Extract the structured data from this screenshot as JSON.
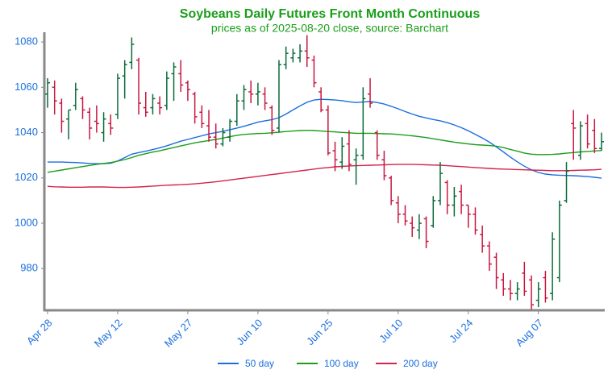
{
  "chart_data": {
    "type": "ohlc",
    "title": "Soybeans Daily Futures Front Month Continuous",
    "subtitle": "prices as of 2025-08-20 close, source: Barchart",
    "title_color": "#1a9e1a",
    "axis_label_color": "#1a6fdf",
    "categories": [
      "Apr 28",
      null,
      null,
      null,
      null,
      null,
      null,
      null,
      null,
      null,
      "May 12",
      null,
      null,
      null,
      null,
      null,
      null,
      null,
      null,
      null,
      "May 27",
      null,
      null,
      null,
      null,
      null,
      null,
      null,
      null,
      null,
      "Jun 10",
      null,
      null,
      null,
      null,
      null,
      null,
      null,
      null,
      null,
      "Jun 25",
      null,
      null,
      null,
      null,
      null,
      null,
      null,
      null,
      null,
      "Jul 10",
      null,
      null,
      null,
      null,
      null,
      null,
      null,
      null,
      null,
      "Jul 24",
      null,
      null,
      null,
      null,
      null,
      null,
      null,
      null,
      null,
      "Aug 07",
      null,
      null,
      null,
      null,
      null,
      null,
      null,
      null,
      null
    ],
    "open": [
      1057,
      1060,
      1053,
      1046,
      1052,
      1055,
      1049,
      1045,
      1040,
      1044,
      1048,
      1065,
      1071,
      1072,
      1051,
      1051,
      1053,
      1052,
      1066,
      1066,
      1062,
      1057,
      1049,
      1043,
      1038,
      1035,
      1038,
      1045,
      1054,
      1058,
      1057,
      1057,
      1051,
      1042,
      1070,
      1073,
      1073,
      1076,
      1072,
      1058,
      1050,
      1032,
      1027,
      1035,
      1028,
      1030,
      1057,
      1040,
      1028,
      1020,
      1009,
      1004,
      1000,
      997,
      1002,
      999,
      1010,
      1018,
      1008,
      1014,
      1008,
      1004,
      995,
      990,
      985,
      975,
      971,
      969,
      978,
      975,
      966,
      976,
      969,
      976,
      1010,
      1044,
      1030,
      1044,
      1041,
      1033
    ],
    "high": [
      1064,
      1063,
      1055,
      1050,
      1062,
      1056,
      1051,
      1052,
      1049,
      1048,
      1066,
      1072,
      1082,
      1073,
      1058,
      1057,
      1056,
      1067,
      1071,
      1072,
      1063,
      1058,
      1052,
      1050,
      1044,
      1042,
      1046,
      1057,
      1061,
      1063,
      1062,
      1060,
      1052,
      1072,
      1078,
      1077,
      1079,
      1083,
      1074,
      1060,
      1052,
      1036,
      1038,
      1041,
      1033,
      1060,
      1064,
      1041,
      1032,
      1021,
      1012,
      1008,
      1003,
      1004,
      1003,
      1012,
      1027,
      1019,
      1016,
      1017,
      1008,
      1007,
      999,
      992,
      987,
      978,
      975,
      974,
      983,
      977,
      974,
      979,
      996,
      1010,
      1027,
      1050,
      1045,
      1048,
      1046,
      1040
    ],
    "low": [
      1051,
      1048,
      1040,
      1037,
      1050,
      1046,
      1037,
      1040,
      1036,
      1039,
      1046,
      1055,
      1068,
      1048,
      1047,
      1048,
      1048,
      1050,
      1054,
      1058,
      1054,
      1044,
      1042,
      1036,
      1033,
      1034,
      1036,
      1043,
      1050,
      1053,
      1052,
      1050,
      1039,
      1040,
      1068,
      1071,
      1071,
      1069,
      1060,
      1049,
      1030,
      1023,
      1024,
      1023,
      1017,
      1028,
      1051,
      1028,
      1019,
      1008,
      1000,
      999,
      994,
      993,
      989,
      998,
      1008,
      1004,
      1003,
      1004,
      998,
      995,
      987,
      979,
      971,
      968,
      966,
      966,
      968,
      962,
      963,
      965,
      966,
      974,
      1009,
      1028,
      1028,
      1033,
      1031,
      1032
    ],
    "close": [
      1062,
      1054,
      1045,
      1050,
      1059,
      1050,
      1042,
      1044,
      1046,
      1042,
      1064,
      1070,
      1079,
      1053,
      1049,
      1055,
      1051,
      1064,
      1069,
      1061,
      1059,
      1047,
      1044,
      1038,
      1035,
      1040,
      1045,
      1054,
      1059,
      1057,
      1058,
      1053,
      1041,
      1070,
      1075,
      1075,
      1076,
      1073,
      1062,
      1050,
      1031,
      1028,
      1034,
      1026,
      1030,
      1055,
      1053,
      1030,
      1021,
      1010,
      1004,
      1001,
      998,
      1000,
      992,
      1010,
      1022,
      1008,
      1012,
      1008,
      1004,
      997,
      990,
      982,
      976,
      971,
      969,
      971,
      970,
      964,
      971,
      967,
      993,
      1008,
      1023,
      1042,
      1043,
      1035,
      1033,
      1036
    ],
    "up_color": "#0b6b3a",
    "down_color": "#c8173f",
    "series": [
      {
        "name": "50 day",
        "color": "#1a6fdf",
        "values": [
          1027,
          1027,
          1027,
          1026.9,
          1026.8,
          1026.6,
          1026.4,
          1026.3,
          1026.3,
          1026.5,
          1027.5,
          1029,
          1030.5,
          1031.2,
          1031.8,
          1032.5,
          1033.3,
          1034.2,
          1035.2,
          1036.2,
          1037,
          1037.8,
          1038.6,
          1039.4,
          1040,
          1040.6,
          1041.3,
          1042,
          1042.8,
          1043.7,
          1044.6,
          1045.2,
          1045.7,
          1046.6,
          1048.2,
          1050,
          1051.8,
          1053.4,
          1054.4,
          1054.7,
          1054.6,
          1054.4,
          1054.1,
          1053.6,
          1053.3,
          1053.5,
          1053.7,
          1053.3,
          1052.6,
          1051.6,
          1050.5,
          1049.3,
          1048.2,
          1047.2,
          1046.5,
          1045.8,
          1045.2,
          1044.4,
          1043.4,
          1042.2,
          1040.8,
          1039.2,
          1037.6,
          1035.8,
          1033.7,
          1031.5,
          1029.2,
          1027.1,
          1025.2,
          1023.6,
          1022.4,
          1021.7,
          1021.4,
          1021.2,
          1021.1,
          1021,
          1020.8,
          1020.6,
          1020.3,
          1019.9
        ]
      },
      {
        "name": "100 day",
        "color": "#1a9e1a",
        "values": [
          1022.5,
          1023,
          1023.5,
          1024,
          1024.5,
          1025,
          1025.5,
          1026,
          1026.4,
          1026.8,
          1027.4,
          1028.1,
          1029,
          1030,
          1030.7,
          1031.4,
          1032,
          1032.7,
          1033.4,
          1034.1,
          1034.8,
          1035.5,
          1036,
          1036.5,
          1037,
          1037.6,
          1038.2,
          1038.8,
          1039.2,
          1039.4,
          1039.6,
          1039.7,
          1039.9,
          1040.2,
          1040.5,
          1040.7,
          1040.9,
          1041,
          1040.9,
          1040.7,
          1040.5,
          1040.3,
          1040.1,
          1039.9,
          1039.7,
          1039.7,
          1039.7,
          1039.6,
          1039.5,
          1039.4,
          1039.2,
          1038.9,
          1038.6,
          1038.2,
          1037.8,
          1037.3,
          1036.8,
          1036.3,
          1035.8,
          1035.4,
          1035,
          1034.7,
          1034.5,
          1034.3,
          1034,
          1033.4,
          1032.6,
          1031.8,
          1031,
          1030.5,
          1030.3,
          1030.3,
          1030.4,
          1030.6,
          1030.9,
          1031.2,
          1031.5,
          1031.7,
          1031.9,
          1032.1
        ]
      },
      {
        "name": "200 day",
        "color": "#d4234a",
        "values": [
          1016.3,
          1016.1,
          1016,
          1015.9,
          1015.9,
          1015.9,
          1016,
          1016,
          1016,
          1015.9,
          1015.8,
          1015.8,
          1015.9,
          1016,
          1016.2,
          1016.4,
          1016.6,
          1016.8,
          1016.9,
          1017,
          1017.2,
          1017.4,
          1017.7,
          1018,
          1018.3,
          1018.7,
          1019.1,
          1019.5,
          1019.9,
          1020.3,
          1020.7,
          1021.1,
          1021.5,
          1021.9,
          1022.3,
          1022.7,
          1023.1,
          1023.5,
          1023.9,
          1024.3,
          1024.6,
          1024.9,
          1025.1,
          1025.3,
          1025.4,
          1025.5,
          1025.6,
          1025.7,
          1025.8,
          1025.9,
          1026,
          1026,
          1026,
          1025.9,
          1025.8,
          1025.7,
          1025.6,
          1025.4,
          1025.2,
          1025,
          1024.8,
          1024.6,
          1024.4,
          1024.2,
          1024,
          1023.9,
          1023.8,
          1023.7,
          1023.6,
          1023.5,
          1023.4,
          1023.3,
          1023.2,
          1023.2,
          1023.2,
          1023.3,
          1023.4,
          1023.5,
          1023.6,
          1023.8
        ]
      }
    ],
    "ylim": [
      961.6,
      1084.3
    ],
    "yticks": [
      980,
      1000,
      1020,
      1040,
      1060,
      1080
    ]
  }
}
